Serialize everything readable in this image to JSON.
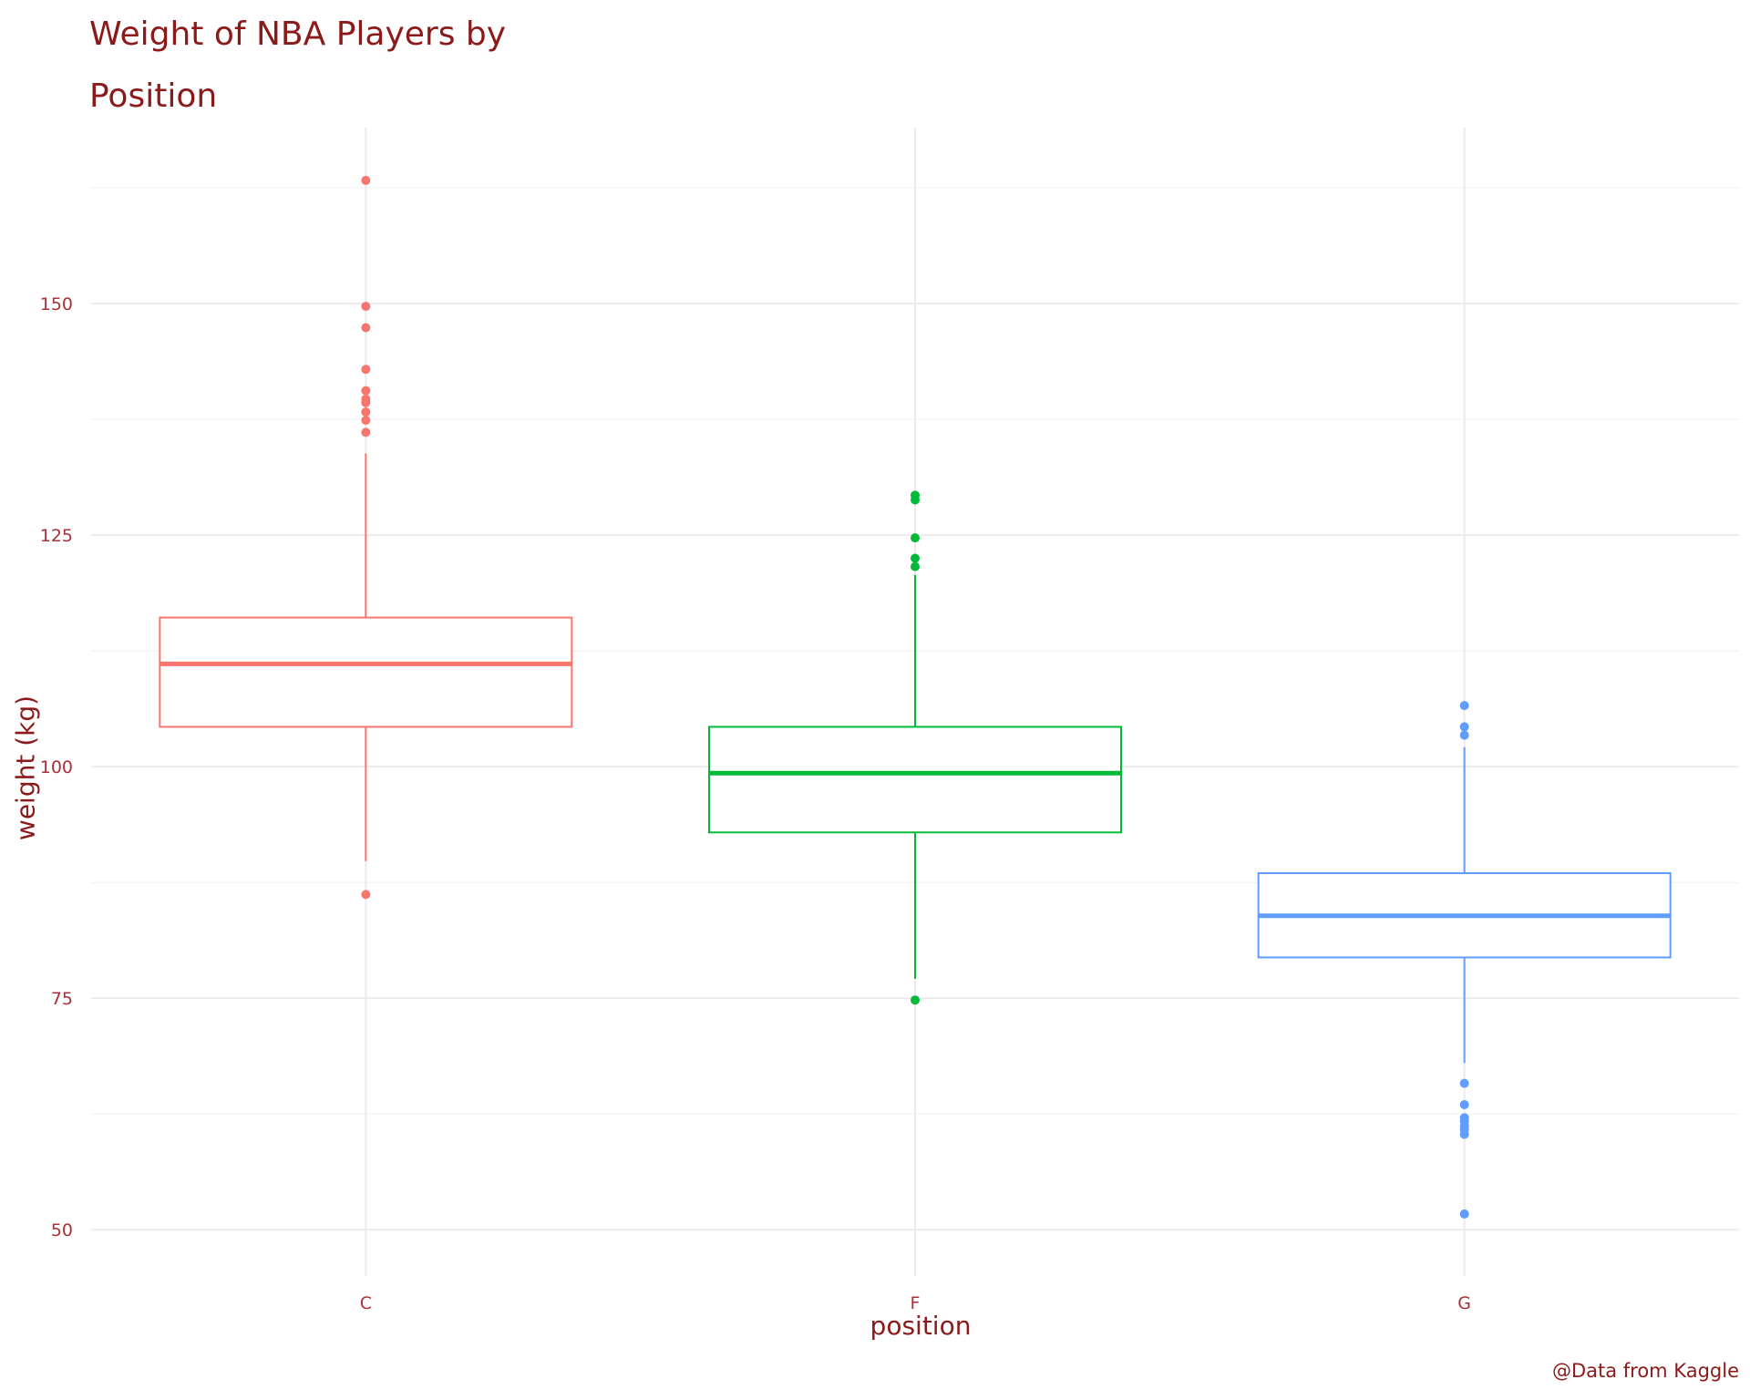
{
  "chart_data": {
    "type": "boxplot",
    "title": "Weight of NBA Players by Position",
    "xlabel": "position",
    "ylabel": "weight (kg)",
    "caption": "@Data from Kaggle",
    "categories": [
      "C",
      "F",
      "G"
    ],
    "ylim": [
      45,
      169
    ],
    "yticks": [
      50,
      75,
      100,
      125,
      150
    ],
    "grid": true,
    "legend": "none",
    "colors": {
      "C": "#f8766d",
      "F": "#00ba38",
      "G": "#619cff",
      "text": "#8b1a1a",
      "grid": "#ebebeb"
    },
    "series": [
      {
        "category": "C",
        "whisker_low": 89.8,
        "q1": 104.3,
        "median": 111.1,
        "q3": 116.1,
        "whisker_high": 133.8,
        "outliers": [
          86.2,
          136.1,
          137.4,
          138.3,
          139.3,
          139.7,
          140.6,
          142.9,
          147.4,
          149.7,
          163.3
        ]
      },
      {
        "category": "F",
        "whisker_low": 77.1,
        "q1": 92.9,
        "median": 99.3,
        "q3": 104.3,
        "whisker_high": 120.7,
        "outliers": [
          74.8,
          121.6,
          122.5,
          124.7,
          128.8,
          129.3
        ]
      },
      {
        "category": "G",
        "whisker_low": 68.0,
        "q1": 79.4,
        "median": 83.9,
        "q3": 88.5,
        "whisker_high": 102.1,
        "outliers": [
          51.7,
          60.3,
          60.8,
          61.2,
          61.7,
          62.1,
          63.5,
          65.8,
          103.4,
          104.3,
          106.6
        ]
      }
    ]
  }
}
